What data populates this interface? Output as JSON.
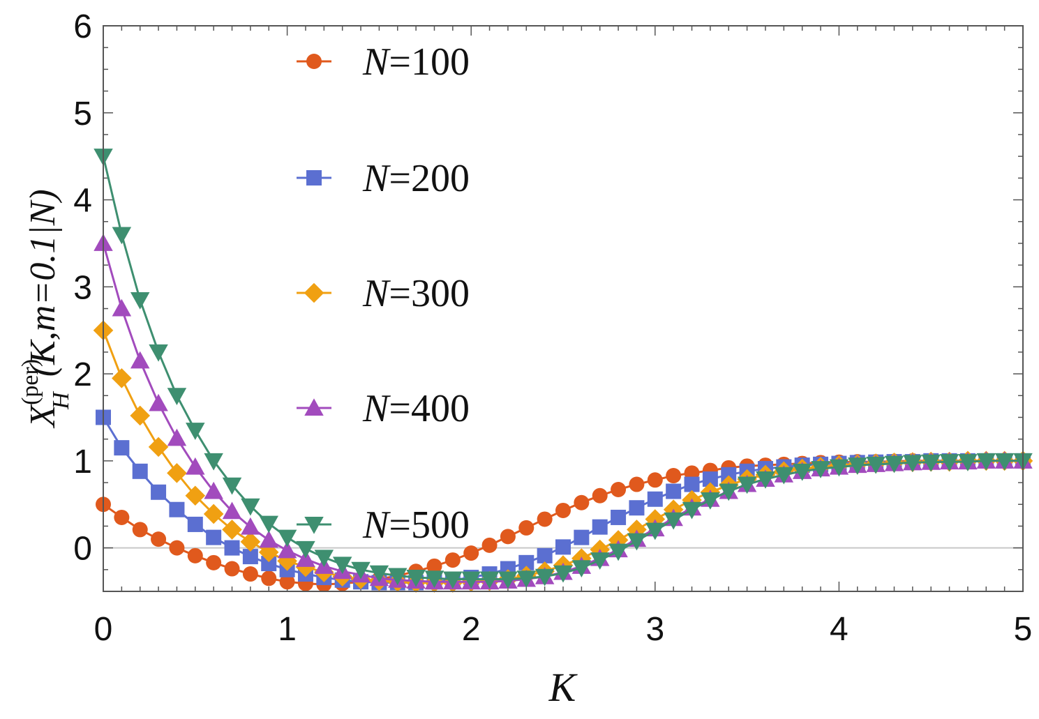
{
  "chart_data": {
    "type": "line",
    "title": "",
    "xlabel": "K",
    "ylabel": {
      "base": "X",
      "sub": "H",
      "sup": "(per)",
      "args": "(K,m=0.1|N)"
    },
    "xlim": [
      0,
      5
    ],
    "ylim": [
      -0.5,
      6
    ],
    "x_ticks": [
      "0",
      "1",
      "2",
      "3",
      "4",
      "5"
    ],
    "y_ticks": [
      "0",
      "1",
      "2",
      "3",
      "4",
      "5",
      "6"
    ],
    "grid": false,
    "zero_line": true,
    "legend_position": "top-center",
    "x": [
      0,
      0.1,
      0.2,
      0.3,
      0.4,
      0.5,
      0.6,
      0.7,
      0.8,
      0.9,
      1.0,
      1.1,
      1.2,
      1.3,
      1.4,
      1.5,
      1.6,
      1.7,
      1.8,
      1.9,
      2.0,
      2.1,
      2.2,
      2.3,
      2.4,
      2.5,
      2.6,
      2.7,
      2.8,
      2.9,
      3.0,
      3.1,
      3.2,
      3.3,
      3.4,
      3.5,
      3.6,
      3.7,
      3.8,
      3.9,
      4.0,
      4.1,
      4.2,
      4.3,
      4.4,
      4.5,
      4.6,
      4.7,
      4.8,
      4.9,
      5.0
    ],
    "series": [
      {
        "name": "N=100",
        "color": "#e0591d",
        "marker": "circle",
        "values": [
          0.5,
          0.35,
          0.21,
          0.1,
          0.0,
          -0.09,
          -0.17,
          -0.24,
          -0.3,
          -0.35,
          -0.39,
          -0.41,
          -0.42,
          -0.41,
          -0.39,
          -0.36,
          -0.32,
          -0.27,
          -0.21,
          -0.14,
          -0.06,
          0.03,
          0.13,
          0.23,
          0.33,
          0.43,
          0.52,
          0.6,
          0.67,
          0.73,
          0.78,
          0.83,
          0.86,
          0.89,
          0.92,
          0.94,
          0.95,
          0.96,
          0.97,
          0.98,
          0.985,
          0.99,
          0.99,
          0.995,
          1.0,
          1.0,
          1.0,
          1.0,
          1.0,
          1.0,
          1.0
        ]
      },
      {
        "name": "N=200",
        "color": "#5b6fd1",
        "marker": "square",
        "values": [
          1.5,
          1.15,
          0.88,
          0.64,
          0.44,
          0.27,
          0.12,
          0.0,
          -0.1,
          -0.18,
          -0.25,
          -0.3,
          -0.34,
          -0.37,
          -0.39,
          -0.4,
          -0.4,
          -0.4,
          -0.39,
          -0.37,
          -0.34,
          -0.3,
          -0.24,
          -0.17,
          -0.09,
          0.01,
          0.12,
          0.24,
          0.35,
          0.46,
          0.56,
          0.65,
          0.73,
          0.79,
          0.84,
          0.88,
          0.91,
          0.93,
          0.95,
          0.96,
          0.97,
          0.98,
          0.985,
          0.99,
          0.99,
          1.0,
          1.0,
          1.0,
          1.0,
          1.0,
          1.0
        ]
      },
      {
        "name": "N=300",
        "color": "#f0a012",
        "marker": "diamond",
        "values": [
          2.5,
          1.95,
          1.52,
          1.16,
          0.86,
          0.6,
          0.39,
          0.21,
          0.07,
          -0.05,
          -0.15,
          -0.22,
          -0.28,
          -0.33,
          -0.36,
          -0.38,
          -0.39,
          -0.4,
          -0.4,
          -0.4,
          -0.39,
          -0.38,
          -0.36,
          -0.32,
          -0.27,
          -0.2,
          -0.12,
          -0.02,
          0.09,
          0.21,
          0.33,
          0.44,
          0.55,
          0.64,
          0.72,
          0.79,
          0.84,
          0.88,
          0.91,
          0.93,
          0.95,
          0.96,
          0.97,
          0.98,
          0.985,
          0.99,
          0.99,
          1.0,
          1.0,
          1.0,
          1.0
        ]
      },
      {
        "name": "N=400",
        "color": "#a24bbd",
        "marker": "triangle-up",
        "values": [
          3.5,
          2.75,
          2.15,
          1.66,
          1.26,
          0.93,
          0.65,
          0.42,
          0.24,
          0.09,
          -0.03,
          -0.13,
          -0.21,
          -0.27,
          -0.31,
          -0.35,
          -0.37,
          -0.38,
          -0.39,
          -0.39,
          -0.39,
          -0.39,
          -0.38,
          -0.36,
          -0.33,
          -0.28,
          -0.21,
          -0.12,
          -0.02,
          0.1,
          0.22,
          0.34,
          0.46,
          0.56,
          0.65,
          0.73,
          0.79,
          0.84,
          0.88,
          0.91,
          0.93,
          0.95,
          0.96,
          0.97,
          0.98,
          0.985,
          0.99,
          0.99,
          1.0,
          1.0,
          1.0
        ]
      },
      {
        "name": "N=500",
        "color": "#3e8f70",
        "marker": "triangle-down",
        "values": [
          4.5,
          3.6,
          2.85,
          2.25,
          1.75,
          1.35,
          1.0,
          0.72,
          0.48,
          0.28,
          0.12,
          -0.01,
          -0.11,
          -0.19,
          -0.25,
          -0.29,
          -0.32,
          -0.34,
          -0.35,
          -0.36,
          -0.36,
          -0.36,
          -0.36,
          -0.35,
          -0.33,
          -0.29,
          -0.23,
          -0.14,
          -0.04,
          0.08,
          0.2,
          0.32,
          0.44,
          0.55,
          0.65,
          0.73,
          0.79,
          0.84,
          0.88,
          0.91,
          0.93,
          0.95,
          0.96,
          0.97,
          0.98,
          0.985,
          0.99,
          0.99,
          1.0,
          1.0,
          1.0
        ]
      }
    ]
  }
}
